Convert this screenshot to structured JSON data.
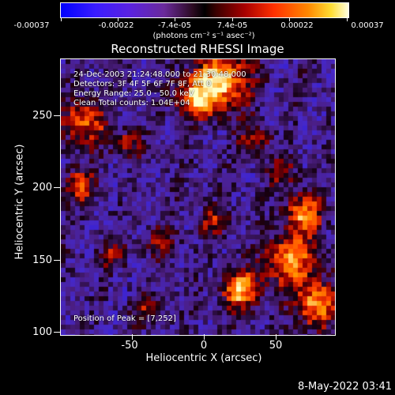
{
  "colorbar": {
    "tick_labels": [
      "-0.00037",
      "-0.00022",
      "-7.4e-05",
      "7.4e-05",
      "0.00022",
      "0.00037"
    ],
    "units": "(photons cm⁻² s⁻¹ asec⁻²)",
    "range": [
      -0.00037,
      0.00037
    ]
  },
  "title": "Reconstructed RHESSI Image",
  "annotations": {
    "time_range": "24-Dec-2003 21:24:48.000 to 21:30:48.000",
    "detectors": "Detectors: 3F 4F 5F 6F 7F 8F, Att 0",
    "energy": "Energy Range: 25.0 - 50.0 keV",
    "clean": "Clean     Total counts: 1.04E+04",
    "peak": "Position of Peak = [7,252]"
  },
  "axes": {
    "xlabel": "Heliocentric X (arcsec)",
    "ylabel": "Heliocentric Y (arcsec)",
    "x_ticks": [
      "-50",
      "0",
      "50"
    ],
    "y_ticks": [
      "100",
      "150",
      "200",
      "250"
    ],
    "xlim": [
      -96,
      96
    ],
    "ylim": [
      98,
      290
    ]
  },
  "datestamp": "8-May-2022 03:41",
  "chart_data": {
    "type": "heatmap",
    "title": "Reconstructed RHESSI Image",
    "xlabel": "Heliocentric X (arcsec)",
    "ylabel": "Heliocentric Y (arcsec)",
    "xlim": [
      -96,
      96
    ],
    "ylim": [
      98,
      290
    ],
    "colorbar_range": [
      -0.00037,
      0.00037
    ],
    "peak_position": [
      7,
      252
    ]
  }
}
